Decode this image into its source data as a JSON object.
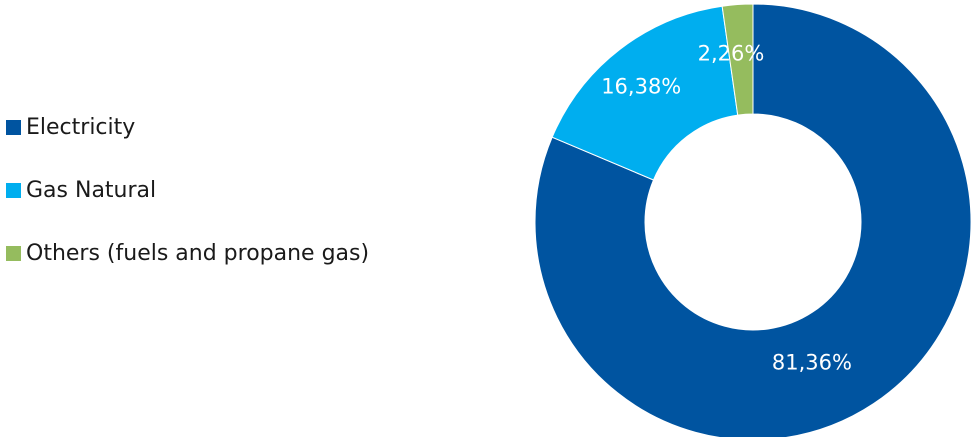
{
  "chart_data": {
    "type": "pie",
    "subtype": "donut",
    "title": "",
    "legend_position": "left",
    "start_angle": "top",
    "direction": "clockwise",
    "series": [
      {
        "name": "Electricity",
        "value": 81.36,
        "label": "81,36%",
        "color": "#0054a0"
      },
      {
        "name": "Gas Natural",
        "value": 16.38,
        "label": "16,38%",
        "color": "#00aeef"
      },
      {
        "name": "Others (fuels and propane gas)",
        "value": 2.26,
        "label": "2,26%",
        "color": "#95bc5e"
      }
    ]
  }
}
